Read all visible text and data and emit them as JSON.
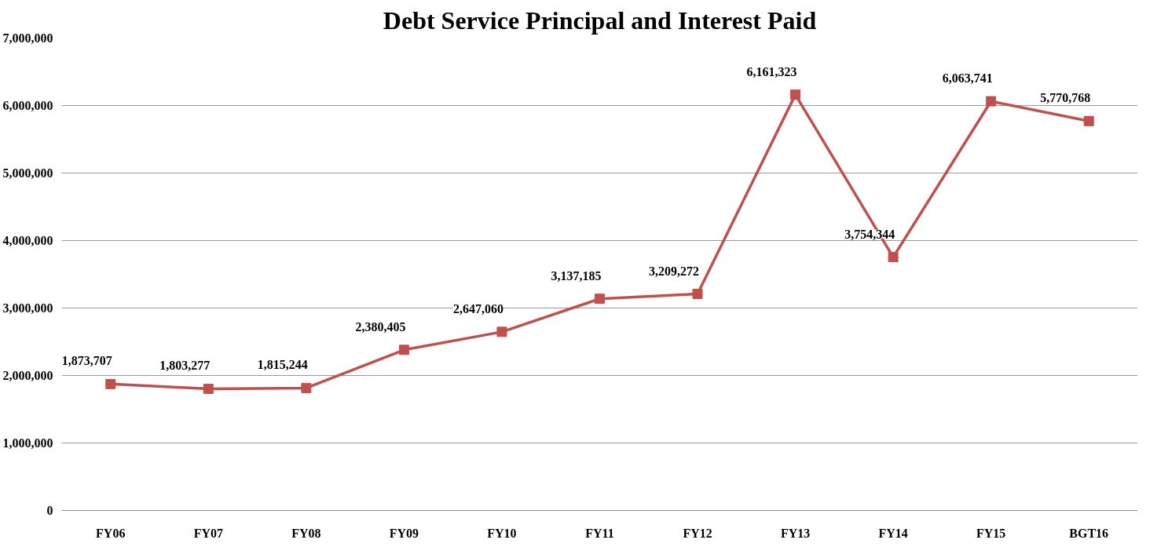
{
  "chart_data": {
    "type": "line",
    "title": "Debt Service Principal and Interest Paid",
    "categories": [
      "FY06",
      "FY07",
      "FY08",
      "FY09",
      "FY10",
      "FY11",
      "FY12",
      "FY13",
      "FY14",
      "FY15",
      "BGT16"
    ],
    "series": [
      {
        "color": "#c0504d",
        "values": [
          1873707,
          1803277,
          1815244,
          2380405,
          2647060,
          3137185,
          3209272,
          6161323,
          3754344,
          6063741,
          5770768
        ],
        "value_labels": [
          "1,873,707",
          "1,803,277",
          "1,815,244",
          "2,380,405",
          "2,647,060",
          "3,137,185",
          "3,209,272",
          "6,161,323",
          "3,754,344",
          "6,063,741",
          "5,770,768"
        ]
      }
    ],
    "ylim": [
      0,
      7000000
    ],
    "yticks": [
      {
        "value": 0,
        "label": "0"
      },
      {
        "value": 1000000,
        "label": "1,000,000"
      },
      {
        "value": 2000000,
        "label": "2,000,000"
      },
      {
        "value": 3000000,
        "label": "3,000,000"
      },
      {
        "value": 4000000,
        "label": "4,000,000"
      },
      {
        "value": 5000000,
        "label": "5,000,000"
      },
      {
        "value": 6000000,
        "label": "6,000,000"
      },
      {
        "value": 7000000,
        "label": "7,000,000"
      }
    ],
    "grid": "y",
    "marker": "square",
    "line_style": "solid"
  }
}
